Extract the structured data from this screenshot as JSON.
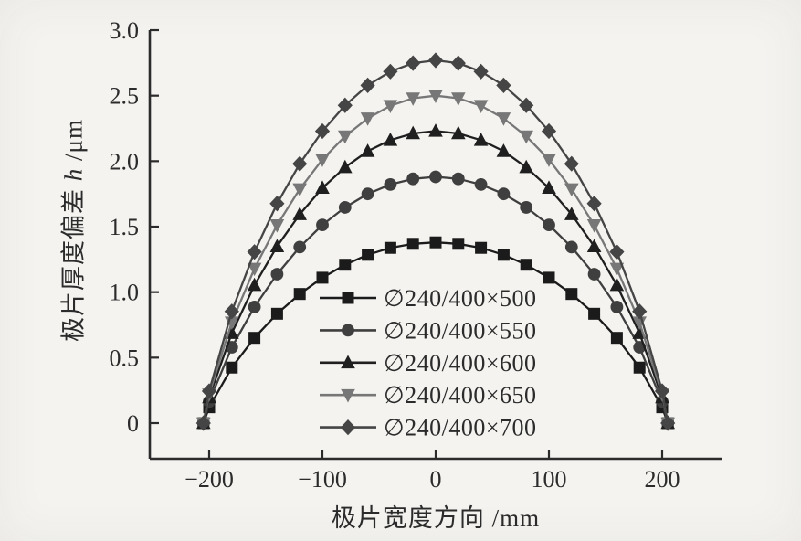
{
  "figure": {
    "background": "#f4f3f0",
    "axis_color": "#2b2b2b",
    "text_color": "#2b2b2b"
  },
  "chart_data": {
    "type": "line",
    "title": "",
    "xlabel": "极片宽度方向 /mm",
    "ylabel": "极片厚度偏差 h /μm",
    "ylabel_parts": {
      "prefix": "极片厚度偏差 ",
      "variable": "h",
      "unit": " /μm"
    },
    "xlim": [
      -252,
      252
    ],
    "ylim": [
      -0.27,
      3.0
    ],
    "x_ticks": [
      -200,
      -100,
      0,
      100,
      200
    ],
    "x_tick_labels": [
      "−200",
      "−100",
      "0",
      "100",
      "200"
    ],
    "y_ticks": [
      0,
      0.5,
      1.0,
      1.5,
      2.0,
      2.5,
      3.0
    ],
    "y_tick_labels": [
      "0",
      "0.5",
      "1.0",
      "1.5",
      "2.0",
      "2.5",
      "3.0"
    ],
    "grid": false,
    "legend_position": "inside lower-center",
    "x": [
      -205,
      -200,
      -180,
      -160,
      -140,
      -120,
      -100,
      -80,
      -60,
      -40,
      -20,
      0,
      20,
      40,
      60,
      80,
      100,
      120,
      140,
      160,
      180,
      200,
      205
    ],
    "series": [
      {
        "name": "∅240/400×500",
        "marker": "square",
        "color": "#1b1b1b",
        "peak": 1.38,
        "values": [
          0,
          0.121,
          0.424,
          0.651,
          0.835,
          0.986,
          1.11,
          1.209,
          1.285,
          1.338,
          1.369,
          1.38,
          1.369,
          1.338,
          1.285,
          1.209,
          1.11,
          0.986,
          0.835,
          0.651,
          0.424,
          0.121,
          0
        ]
      },
      {
        "name": "∅240/400×550",
        "marker": "circle",
        "color": "#3f3f3f",
        "peak": 1.88,
        "values": [
          0,
          0.165,
          0.579,
          0.887,
          1.137,
          1.344,
          1.513,
          1.647,
          1.75,
          1.822,
          1.865,
          1.88,
          1.865,
          1.822,
          1.75,
          1.647,
          1.513,
          1.344,
          1.137,
          0.887,
          0.579,
          0.165,
          0
        ]
      },
      {
        "name": "∅240/400×600",
        "marker": "triangle-up",
        "color": "#1f1f1f",
        "peak": 2.23,
        "values": [
          0,
          0.196,
          0.687,
          1.053,
          1.349,
          1.594,
          1.795,
          1.953,
          2.076,
          2.161,
          2.212,
          2.23,
          2.212,
          2.161,
          2.076,
          1.953,
          1.795,
          1.594,
          1.349,
          1.053,
          0.687,
          0.196,
          0
        ]
      },
      {
        "name": "∅240/400×650",
        "marker": "triangle-down",
        "color": "#777777",
        "peak": 2.5,
        "values": [
          0,
          0.22,
          0.77,
          1.18,
          1.512,
          1.787,
          2.012,
          2.19,
          2.327,
          2.423,
          2.48,
          2.5,
          2.48,
          2.423,
          2.327,
          2.19,
          2.012,
          1.787,
          1.512,
          1.18,
          0.77,
          0.22,
          0
        ]
      },
      {
        "name": "∅240/400×700",
        "marker": "diamond",
        "color": "#454545",
        "peak": 2.77,
        "values": [
          0,
          0.244,
          0.853,
          1.307,
          1.676,
          1.98,
          2.229,
          2.426,
          2.579,
          2.684,
          2.748,
          2.77,
          2.748,
          2.684,
          2.579,
          2.426,
          2.229,
          1.98,
          1.676,
          1.307,
          0.853,
          0.244,
          0
        ]
      }
    ]
  }
}
